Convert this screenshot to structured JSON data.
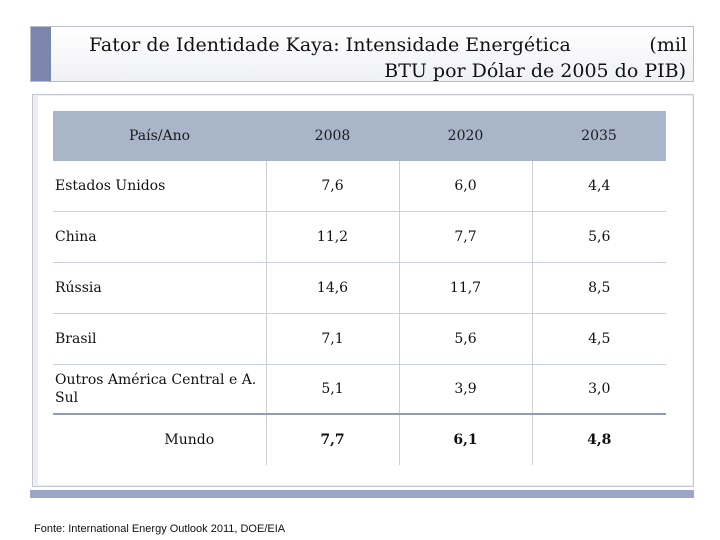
{
  "slide": {
    "title_left": "Fator de Identidade Kaya: Intensidade Energética",
    "title_right": "(mil",
    "title_line2": "BTU por Dólar de 2005 do PIB)",
    "source": "Fonte: International Energy Outlook 2011, DOE/EIA"
  },
  "table": {
    "header": [
      "País/Ano",
      "2008",
      "2020",
      "2035"
    ],
    "rows": [
      {
        "name": "Estados Unidos",
        "v2008": "7,6",
        "v2020": "6,0",
        "v2035": "4,4"
      },
      {
        "name": "China",
        "v2008": "11,2",
        "v2020": "7,7",
        "v2035": "5,6"
      },
      {
        "name": "Rússia",
        "v2008": "14,6",
        "v2020": "11,7",
        "v2035": "8,5"
      },
      {
        "name": "Brasil",
        "v2008": "7,1",
        "v2020": "5,6",
        "v2035": "4,5"
      },
      {
        "name": "Outros  América Central e A. Sul",
        "v2008": "5,1",
        "v2020": "3,9",
        "v2035": "3,0"
      },
      {
        "name": "Mundo",
        "v2008": "7,7",
        "v2020": "6,1",
        "v2035": "4,8"
      }
    ]
  }
}
